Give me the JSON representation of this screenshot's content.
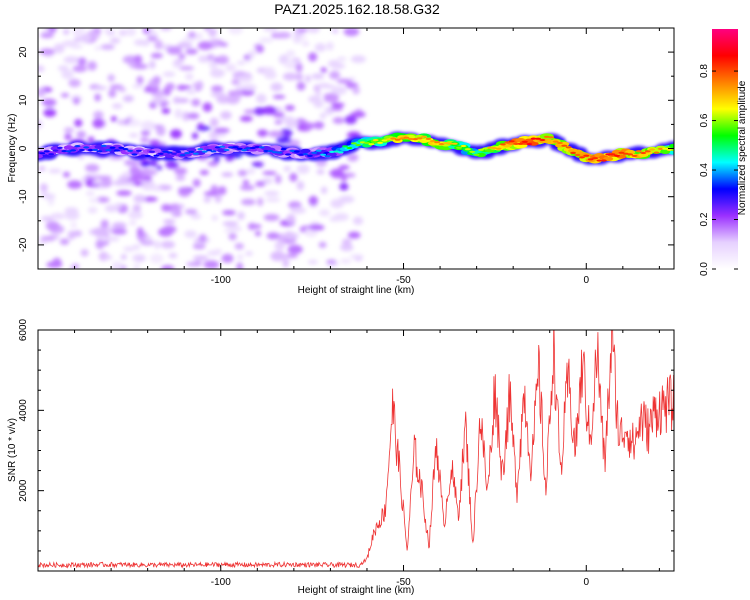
{
  "title": "PAZ1.2025.162.18.58.G32",
  "chart_data": [
    {
      "type": "heatmap",
      "xlabel": "Height of straight line (km)",
      "ylabel": "Frequency (Hz)",
      "xlim": [
        -150,
        24
      ],
      "ylim": [
        -25,
        25
      ],
      "xticks": [
        -100,
        -50,
        0
      ],
      "yticks": [
        -20,
        -10,
        0,
        10,
        20
      ],
      "colorbar": {
        "label": "Normalized spectral amplitude",
        "range": [
          0.0,
          0.97
        ],
        "ticks": [
          0.0,
          0.2,
          0.4,
          0.6,
          0.8
        ],
        "tick_labels": [
          "0.0",
          "0.2",
          "0.4",
          "0.6",
          "0.8"
        ],
        "colormap": [
          "#ffffff",
          "#e6d0ff",
          "#9b30ff",
          "#0000ff",
          "#00ffff",
          "#00ff00",
          "#ffff00",
          "#ff8000",
          "#ff0000",
          "#ff0080"
        ]
      },
      "ridge": {
        "height_km": [
          -150,
          -140,
          -130,
          -120,
          -110,
          -100,
          -90,
          -80,
          -70,
          -62,
          -55,
          -50,
          -45,
          -40,
          -35,
          -30,
          -25,
          -20,
          -15,
          -10,
          -5,
          0,
          5,
          10,
          15,
          20,
          24
        ],
        "frequency_hz": [
          -1,
          0,
          0,
          -1,
          -1,
          0,
          0,
          -1,
          -1,
          1,
          1.5,
          2.5,
          2,
          1,
          0.5,
          -1,
          0,
          1,
          1.5,
          2,
          0,
          -2,
          -2,
          -1,
          -1,
          -0.5,
          0
        ],
        "peak_amplitude": [
          0.25,
          0.3,
          0.3,
          0.25,
          0.3,
          0.3,
          0.3,
          0.3,
          0.35,
          0.55,
          0.65,
          0.75,
          0.7,
          0.75,
          0.6,
          0.55,
          0.7,
          0.8,
          0.85,
          0.75,
          0.75,
          0.8,
          0.85,
          0.8,
          0.75,
          0.7,
          0.6
        ]
      },
      "noise_region_km": [
        -150,
        -62
      ]
    },
    {
      "type": "line",
      "xlabel": "Height of straight line (km)",
      "ylabel": "SNR (10 * v/v)",
      "xlim": [
        -150,
        24
      ],
      "ylim": [
        0,
        6000
      ],
      "xticks": [
        -100,
        -50,
        0
      ],
      "yticks": [
        2000,
        4000,
        6000
      ],
      "color": "#ee3333",
      "series": [
        {
          "x": [
            -150,
            -140,
            -130,
            -120,
            -110,
            -100,
            -90,
            -80,
            -70,
            -62,
            -60,
            -58,
            -55,
            -53,
            -51,
            -49,
            -47,
            -45,
            -43,
            -41,
            -39,
            -37,
            -35,
            -33,
            -31,
            -29,
            -27,
            -25,
            -23,
            -21,
            -19,
            -17,
            -15,
            -13,
            -11,
            -9,
            -7,
            -5,
            -3,
            -1,
            1,
            3,
            5,
            7,
            9,
            11,
            13,
            15,
            17,
            19,
            21,
            24
          ],
          "y": [
            150,
            150,
            160,
            150,
            150,
            160,
            150,
            160,
            150,
            150,
            300,
            1000,
            1500,
            4100,
            2400,
            500,
            3000,
            2000,
            600,
            3300,
            1100,
            2600,
            1400,
            3600,
            600,
            3900,
            1900,
            4600,
            2400,
            4300,
            2000,
            4500,
            2500,
            5000,
            1900,
            5700,
            2400,
            4800,
            3000,
            5200,
            3200,
            5500,
            2600,
            5800,
            3300,
            3600,
            3100,
            3800,
            3500,
            4000,
            4100,
            4200
          ]
        }
      ]
    }
  ]
}
